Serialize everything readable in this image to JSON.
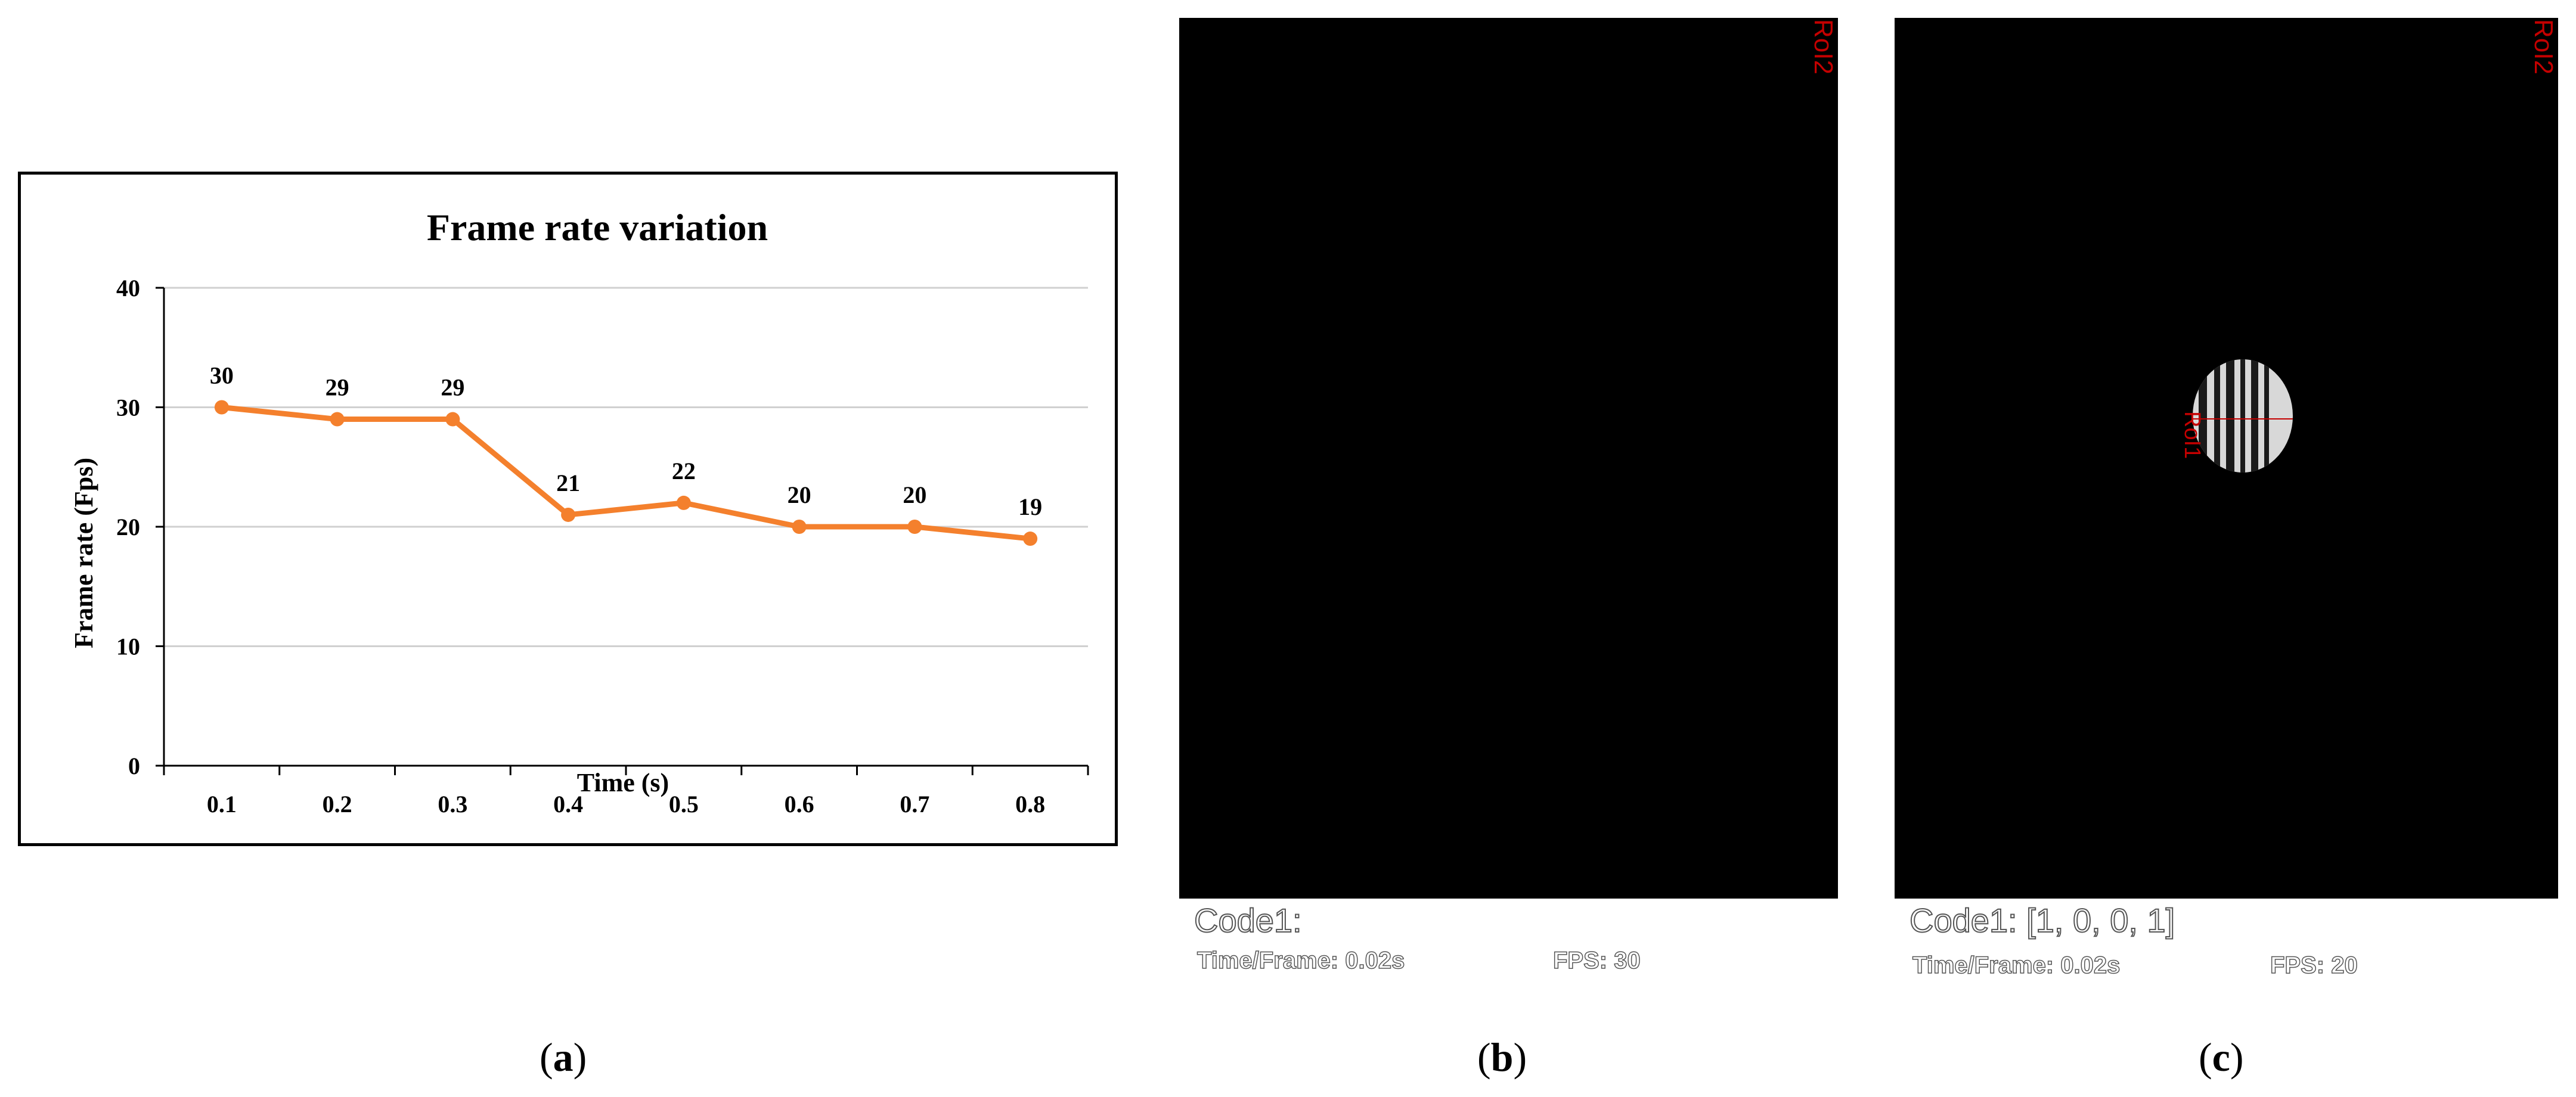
{
  "chart_data": {
    "type": "line",
    "title": "Frame rate variation",
    "xlabel": "Time (s)",
    "ylabel": "Frame rate (Fps)",
    "categories": [
      "0.1",
      "0.2",
      "0.3",
      "0.4",
      "0.5",
      "0.6",
      "0.7",
      "0.8"
    ],
    "values": [
      30,
      29,
      29,
      21,
      22,
      20,
      20,
      19
    ],
    "data_labels": [
      "30",
      "29",
      "29",
      "21",
      "22",
      "20",
      "20",
      "19"
    ],
    "yticks": [
      "0",
      "10",
      "20",
      "30",
      "40"
    ],
    "ylim": [
      0,
      40
    ],
    "grid": true,
    "line_color": "#f4802d"
  },
  "panel_b": {
    "roi2": "RoI2",
    "code": "Code1:",
    "time_frame": "Time/Frame: 0.02s",
    "fps": "FPS:  30"
  },
  "panel_c": {
    "roi2": "RoI2",
    "roi1": "RoI1",
    "code": "Code1: [1, 0, 0, 1]",
    "time_frame": "Time/Frame: 0.02s",
    "fps": "FPS: 20"
  },
  "labels": {
    "a": "a",
    "b": "b",
    "c": "c"
  }
}
